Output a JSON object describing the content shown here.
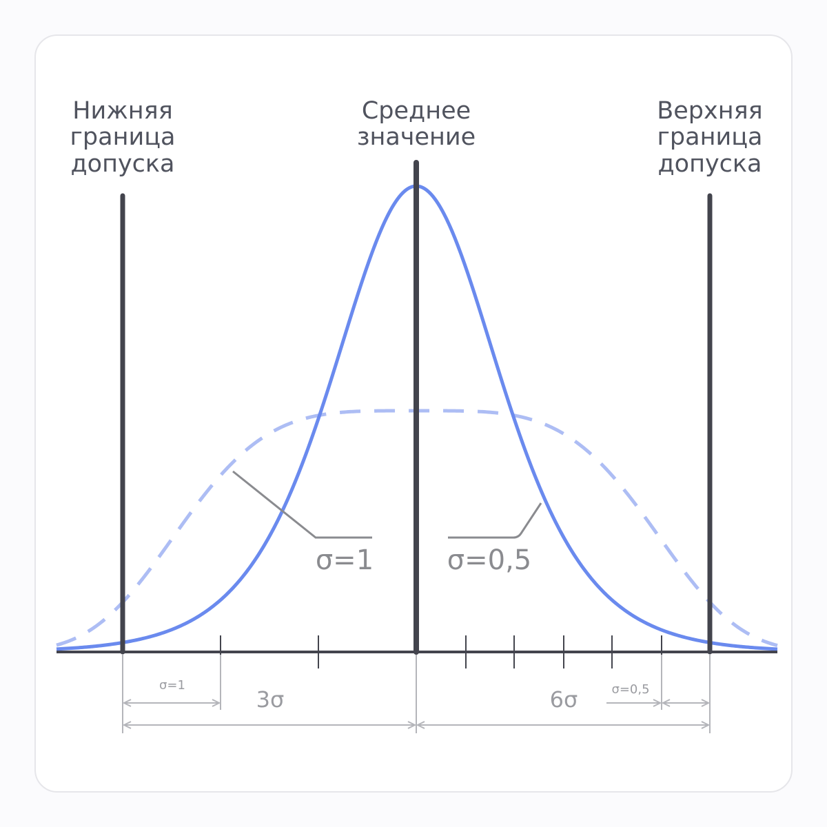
{
  "labels": {
    "lower_limit": [
      "Нижняя",
      "граница",
      "допуска"
    ],
    "mean": [
      "Среднее",
      "значение"
    ],
    "upper_limit": [
      "Верхняя",
      "граница",
      "допуска"
    ]
  },
  "curve_labels": {
    "wide": "σ=1",
    "narrow": "σ=0,5"
  },
  "dimensions": {
    "sigma_wide": "σ=1",
    "three_sigma": "3σ",
    "six_sigma": "6σ",
    "sigma_narrow": "σ=0,5"
  }
}
